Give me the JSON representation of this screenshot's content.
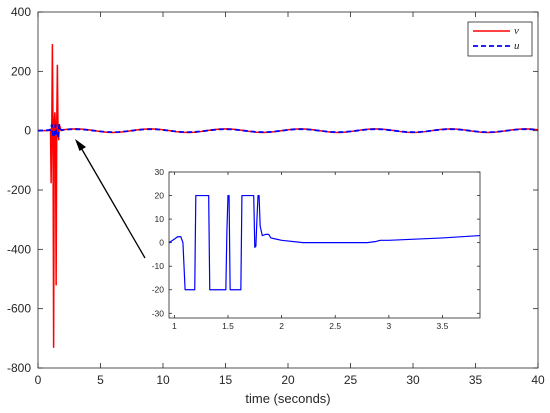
{
  "chart_data": [
    {
      "id": "main",
      "type": "line",
      "title": "",
      "xlabel": "time (seconds)",
      "ylabel": "",
      "xlim": [
        0,
        40
      ],
      "ylim": [
        -800,
        400
      ],
      "xticks": [
        "0",
        "5",
        "10",
        "15",
        "20",
        "25",
        "30",
        "35",
        "40"
      ],
      "yticks": [
        "400",
        "200",
        "0",
        "-200",
        "-400",
        "-600",
        "-800"
      ],
      "legend": {
        "position": "top-right",
        "entries": [
          "v",
          "u"
        ]
      },
      "series": [
        {
          "name": "v",
          "color": "#ff0000",
          "style": "solid",
          "x": [
            0,
            0.8,
            1.0,
            1.05,
            1.1,
            1.15,
            1.2,
            1.25,
            1.3,
            1.35,
            1.4,
            1.45,
            1.5,
            1.55,
            1.6,
            1.65,
            1.7,
            1.75,
            1.8,
            1.85,
            1.9,
            2.0,
            2.5,
            3.0,
            3.5,
            4.0,
            4.5,
            5.0,
            5.5,
            6.0,
            6.5,
            7.0,
            7.5,
            8.0,
            8.5,
            9.0,
            9.5,
            10.0,
            10.5,
            11.0,
            11.5,
            12.0,
            12.5,
            13.0,
            13.5,
            14.0,
            14.5,
            15.0,
            15.5,
            16.0,
            16.5,
            17.0,
            17.5,
            18.0,
            18.5,
            19.0,
            19.5,
            20.0,
            20.5,
            21.0,
            21.5,
            22.0,
            22.5,
            23.0,
            23.5,
            24.0,
            24.5,
            25.0,
            25.5,
            26.0,
            26.5,
            27.0,
            27.5,
            28.0,
            28.5,
            29.0,
            29.5,
            30.0,
            30.5,
            31.0,
            31.5,
            32.0,
            32.5,
            33.0,
            33.5,
            34.0,
            34.5,
            35.0,
            35.5,
            36.0,
            36.5,
            37.0,
            37.5,
            38.0,
            38.5,
            39.0,
            39.5,
            40.0
          ],
          "y": [
            0,
            0,
            5,
            -175,
            0,
            290,
            10,
            -730,
            30,
            60,
            10,
            -520,
            25,
            220,
            5,
            -30,
            10,
            15,
            5,
            0,
            2,
            3.0,
            5.3,
            6.0,
            5.3,
            3.0,
            0.0,
            -3.0,
            -5.3,
            -6.0,
            -5.3,
            -3.0,
            0.0,
            3.0,
            5.3,
            6.0,
            5.3,
            3.0,
            0.0,
            -3.0,
            -5.3,
            -6.0,
            -5.3,
            -3.0,
            0.0,
            3.0,
            5.3,
            6.0,
            5.3,
            3.0,
            0.0,
            -3.0,
            -5.3,
            -6.0,
            -5.3,
            -3.0,
            0.0,
            3.0,
            5.3,
            6.0,
            5.3,
            3.0,
            0.0,
            -3.0,
            -5.3,
            -6.0,
            -5.3,
            -3.0,
            0.0,
            3.0,
            5.3,
            6.0,
            5.3,
            3.0,
            0.0,
            -3.0,
            -5.3,
            -6.0,
            -5.3,
            -3.0,
            0.0,
            3.0,
            5.3,
            6.0,
            5.3,
            3.0,
            0.0,
            -3.0,
            -5.3,
            -6.0,
            -5.3,
            -3.0,
            0.0,
            3.0,
            5.3,
            6.0,
            5.3,
            3.0
          ]
        },
        {
          "name": "u",
          "color": "#0000ff",
          "style": "dashed",
          "x": [
            0,
            1.0,
            1.1,
            1.2,
            1.3,
            1.4,
            1.5,
            1.6,
            1.7,
            1.8,
            1.9,
            2.0,
            2.5,
            3.0,
            3.5,
            4.0,
            4.5,
            5.0,
            5.5,
            6.0,
            6.5,
            7.0,
            7.5,
            8.0,
            8.5,
            9.0,
            9.5,
            10.0,
            10.5,
            11.0,
            11.5,
            12.0,
            12.5,
            13.0,
            13.5,
            14.0,
            14.5,
            15.0,
            15.5,
            16.0,
            16.5,
            17.0,
            17.5,
            18.0,
            18.5,
            19.0,
            19.5,
            20.0,
            20.5,
            21.0,
            21.5,
            22.0,
            22.5,
            23.0,
            23.5,
            24.0,
            24.5,
            25.0,
            25.5,
            26.0,
            26.5,
            27.0,
            27.5,
            28.0,
            28.5,
            29.0,
            29.5,
            30.0,
            30.5,
            31.0,
            31.5,
            32.0,
            32.5,
            33.0,
            33.5,
            34.0,
            34.5,
            35.0,
            35.5,
            36.0,
            36.5,
            37.0,
            37.5,
            38.0,
            38.5,
            39.0,
            39.5,
            40.0
          ],
          "y": [
            0,
            2,
            20,
            -20,
            -20,
            20,
            -20,
            -20,
            20,
            5,
            2,
            2.5,
            4.5,
            5.0,
            4.5,
            2.5,
            0.0,
            -2.5,
            -4.5,
            -5.0,
            -4.5,
            -2.5,
            0.0,
            2.5,
            4.5,
            5.0,
            4.5,
            2.5,
            0.0,
            -2.5,
            -4.5,
            -5.0,
            -4.5,
            -2.5,
            0.0,
            2.5,
            4.5,
            5.0,
            4.5,
            2.5,
            0.0,
            -2.5,
            -4.5,
            -5.0,
            -4.5,
            -2.5,
            0.0,
            2.5,
            4.5,
            5.0,
            4.5,
            2.5,
            0.0,
            -2.5,
            -4.5,
            -5.0,
            -4.5,
            -2.5,
            0.0,
            2.5,
            4.5,
            5.0,
            4.5,
            2.5,
            0.0,
            -2.5,
            -4.5,
            -5.0,
            -4.5,
            -2.5,
            0.0,
            2.5,
            4.5,
            5.0,
            4.5,
            2.5,
            0.0,
            -2.5,
            -4.5,
            -5.0,
            -4.5,
            -2.5,
            0.0,
            2.5,
            4.5,
            5.0,
            4.5,
            2.5
          ]
        }
      ]
    },
    {
      "id": "inset",
      "type": "line",
      "title": "",
      "xlabel": "",
      "ylabel": "",
      "xlim": [
        0.95,
        3.85
      ],
      "ylim": [
        -32,
        30
      ],
      "xticks": [
        "1",
        "1.5",
        "2",
        "2.5",
        "3",
        "3.5"
      ],
      "yticks": [
        "30",
        "20",
        "10",
        "0",
        "-10",
        "-20",
        "-30"
      ],
      "annotation": "arrow from inset to the transient near t = 1.5 s on the main plot",
      "series": [
        {
          "name": "",
          "color": "#0000ff",
          "style": "solid",
          "x": [
            0.95,
            1.0,
            1.03,
            1.06,
            1.08,
            1.09,
            1.1,
            1.15,
            1.19,
            1.2,
            1.26,
            1.32,
            1.33,
            1.45,
            1.48,
            1.49,
            1.5,
            1.51,
            1.52,
            1.53,
            1.55,
            1.6,
            1.62,
            1.63,
            1.72,
            1.73,
            1.74,
            1.75,
            1.76,
            1.77,
            1.78,
            1.79,
            1.8,
            1.82,
            1.85,
            1.88,
            1.9,
            1.95,
            2.0,
            2.2,
            2.5,
            2.8,
            2.88,
            2.92,
            3.0,
            3.5,
            3.85
          ],
          "y": [
            0,
            1.5,
            2.5,
            2.5,
            0,
            -10,
            -20,
            -20,
            -20,
            20,
            20,
            20,
            -20,
            -20,
            -20,
            5,
            20,
            20,
            -20,
            -20,
            -20,
            -20,
            -20,
            20,
            20,
            20,
            20,
            -2,
            -1.5,
            10,
            20,
            20,
            7,
            3,
            3.5,
            3.5,
            2,
            1.5,
            1,
            0,
            0,
            0,
            0.5,
            1,
            1,
            2,
            3
          ]
        }
      ]
    }
  ]
}
